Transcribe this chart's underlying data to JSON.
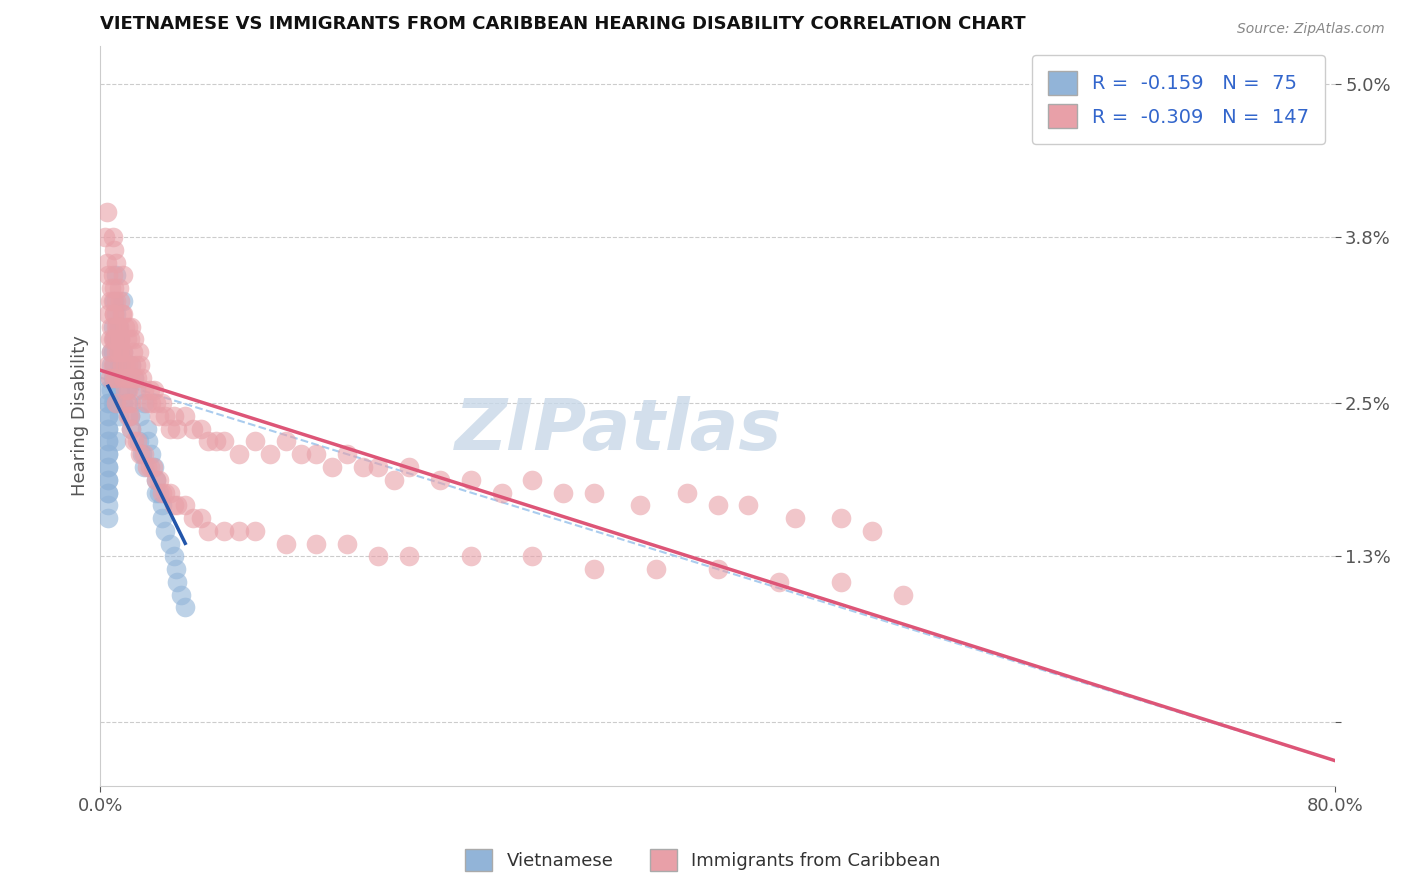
{
  "title": "VIETNAMESE VS IMMIGRANTS FROM CARIBBEAN HEARING DISABILITY CORRELATION CHART",
  "source": "Source: ZipAtlas.com",
  "ylabel": "Hearing Disability",
  "xlim": [
    0.0,
    0.8
  ],
  "ylim": [
    -0.005,
    0.053
  ],
  "ytick_vals": [
    0.0,
    0.013,
    0.025,
    0.038,
    0.05
  ],
  "ytick_labels": [
    "",
    "1.3%",
    "2.5%",
    "3.8%",
    "5.0%"
  ],
  "R_vietnamese": -0.159,
  "N_vietnamese": 75,
  "R_caribbean": -0.309,
  "N_caribbean": 147,
  "color_vietnamese": "#92b4d8",
  "color_caribbean": "#e8a0a8",
  "color_trendline_vietnamese": "#2255aa",
  "color_trendline_caribbean": "#dd5577",
  "color_dashed": "#aaccee",
  "background_color": "#ffffff",
  "grid_color": "#cccccc",
  "watermark": "ZIPatlas",
  "legend_label_vietnamese": "Vietnamese",
  "legend_label_caribbean": "Immigrants from Caribbean",
  "viet_x": [
    0.005,
    0.005,
    0.005,
    0.005,
    0.005,
    0.005,
    0.005,
    0.005,
    0.005,
    0.005,
    0.005,
    0.005,
    0.005,
    0.005,
    0.005,
    0.005,
    0.005,
    0.005,
    0.005,
    0.005,
    0.007,
    0.007,
    0.007,
    0.008,
    0.008,
    0.008,
    0.008,
    0.009,
    0.009,
    0.009,
    0.009,
    0.01,
    0.01,
    0.01,
    0.01,
    0.01,
    0.01,
    0.012,
    0.012,
    0.012,
    0.013,
    0.013,
    0.014,
    0.015,
    0.015,
    0.015,
    0.016,
    0.017,
    0.018,
    0.019,
    0.02,
    0.02,
    0.022,
    0.023,
    0.025,
    0.026,
    0.027,
    0.028,
    0.028,
    0.03,
    0.031,
    0.033,
    0.035,
    0.036,
    0.036,
    0.038,
    0.04,
    0.04,
    0.042,
    0.045,
    0.048,
    0.049,
    0.05,
    0.052,
    0.055
  ],
  "viet_y": [
    0.027,
    0.026,
    0.025,
    0.025,
    0.024,
    0.024,
    0.023,
    0.023,
    0.022,
    0.022,
    0.021,
    0.021,
    0.02,
    0.02,
    0.019,
    0.019,
    0.018,
    0.018,
    0.017,
    0.016,
    0.029,
    0.028,
    0.026,
    0.031,
    0.029,
    0.027,
    0.025,
    0.033,
    0.03,
    0.028,
    0.025,
    0.035,
    0.032,
    0.03,
    0.027,
    0.025,
    0.022,
    0.031,
    0.028,
    0.024,
    0.03,
    0.026,
    0.028,
    0.033,
    0.029,
    0.025,
    0.027,
    0.026,
    0.025,
    0.024,
    0.028,
    0.023,
    0.027,
    0.026,
    0.022,
    0.024,
    0.021,
    0.025,
    0.02,
    0.023,
    0.022,
    0.021,
    0.02,
    0.019,
    0.018,
    0.018,
    0.017,
    0.016,
    0.015,
    0.014,
    0.013,
    0.012,
    0.011,
    0.01,
    0.009
  ],
  "carib_x": [
    0.003,
    0.004,
    0.004,
    0.005,
    0.005,
    0.005,
    0.006,
    0.006,
    0.006,
    0.007,
    0.007,
    0.007,
    0.008,
    0.008,
    0.008,
    0.008,
    0.009,
    0.009,
    0.009,
    0.009,
    0.009,
    0.01,
    0.01,
    0.01,
    0.01,
    0.01,
    0.01,
    0.012,
    0.012,
    0.012,
    0.013,
    0.013,
    0.014,
    0.014,
    0.015,
    0.015,
    0.015,
    0.016,
    0.016,
    0.017,
    0.017,
    0.018,
    0.018,
    0.018,
    0.019,
    0.019,
    0.02,
    0.02,
    0.02,
    0.021,
    0.022,
    0.022,
    0.023,
    0.024,
    0.025,
    0.026,
    0.027,
    0.028,
    0.03,
    0.032,
    0.033,
    0.035,
    0.036,
    0.038,
    0.04,
    0.042,
    0.045,
    0.048,
    0.05,
    0.055,
    0.06,
    0.065,
    0.07,
    0.075,
    0.08,
    0.09,
    0.1,
    0.11,
    0.12,
    0.13,
    0.14,
    0.15,
    0.16,
    0.17,
    0.18,
    0.19,
    0.2,
    0.22,
    0.24,
    0.26,
    0.28,
    0.3,
    0.32,
    0.35,
    0.38,
    0.4,
    0.42,
    0.45,
    0.48,
    0.5,
    0.008,
    0.009,
    0.01,
    0.011,
    0.012,
    0.013,
    0.014,
    0.015,
    0.016,
    0.017,
    0.018,
    0.019,
    0.02,
    0.022,
    0.024,
    0.026,
    0.028,
    0.03,
    0.032,
    0.034,
    0.036,
    0.038,
    0.04,
    0.042,
    0.045,
    0.048,
    0.05,
    0.055,
    0.06,
    0.065,
    0.07,
    0.08,
    0.09,
    0.1,
    0.12,
    0.14,
    0.16,
    0.18,
    0.2,
    0.24,
    0.28,
    0.32,
    0.36,
    0.4,
    0.44,
    0.48,
    0.52
  ],
  "carib_y": [
    0.038,
    0.036,
    0.04,
    0.035,
    0.032,
    0.028,
    0.033,
    0.03,
    0.027,
    0.034,
    0.031,
    0.029,
    0.038,
    0.035,
    0.033,
    0.03,
    0.037,
    0.034,
    0.032,
    0.03,
    0.027,
    0.036,
    0.033,
    0.031,
    0.029,
    0.027,
    0.025,
    0.034,
    0.031,
    0.029,
    0.033,
    0.03,
    0.032,
    0.029,
    0.035,
    0.032,
    0.029,
    0.031,
    0.028,
    0.03,
    0.027,
    0.031,
    0.028,
    0.026,
    0.03,
    0.027,
    0.031,
    0.028,
    0.025,
    0.029,
    0.03,
    0.027,
    0.028,
    0.027,
    0.029,
    0.028,
    0.027,
    0.026,
    0.025,
    0.026,
    0.025,
    0.026,
    0.025,
    0.024,
    0.025,
    0.024,
    0.023,
    0.024,
    0.023,
    0.024,
    0.023,
    0.023,
    0.022,
    0.022,
    0.022,
    0.021,
    0.022,
    0.021,
    0.022,
    0.021,
    0.021,
    0.02,
    0.021,
    0.02,
    0.02,
    0.019,
    0.02,
    0.019,
    0.019,
    0.018,
    0.019,
    0.018,
    0.018,
    0.017,
    0.018,
    0.017,
    0.017,
    0.016,
    0.016,
    0.015,
    0.028,
    0.032,
    0.03,
    0.031,
    0.029,
    0.03,
    0.028,
    0.027,
    0.026,
    0.025,
    0.024,
    0.024,
    0.023,
    0.022,
    0.022,
    0.021,
    0.021,
    0.02,
    0.02,
    0.02,
    0.019,
    0.019,
    0.018,
    0.018,
    0.018,
    0.017,
    0.017,
    0.017,
    0.016,
    0.016,
    0.015,
    0.015,
    0.015,
    0.015,
    0.014,
    0.014,
    0.014,
    0.013,
    0.013,
    0.013,
    0.013,
    0.012,
    0.012,
    0.012,
    0.011,
    0.011,
    0.01
  ]
}
